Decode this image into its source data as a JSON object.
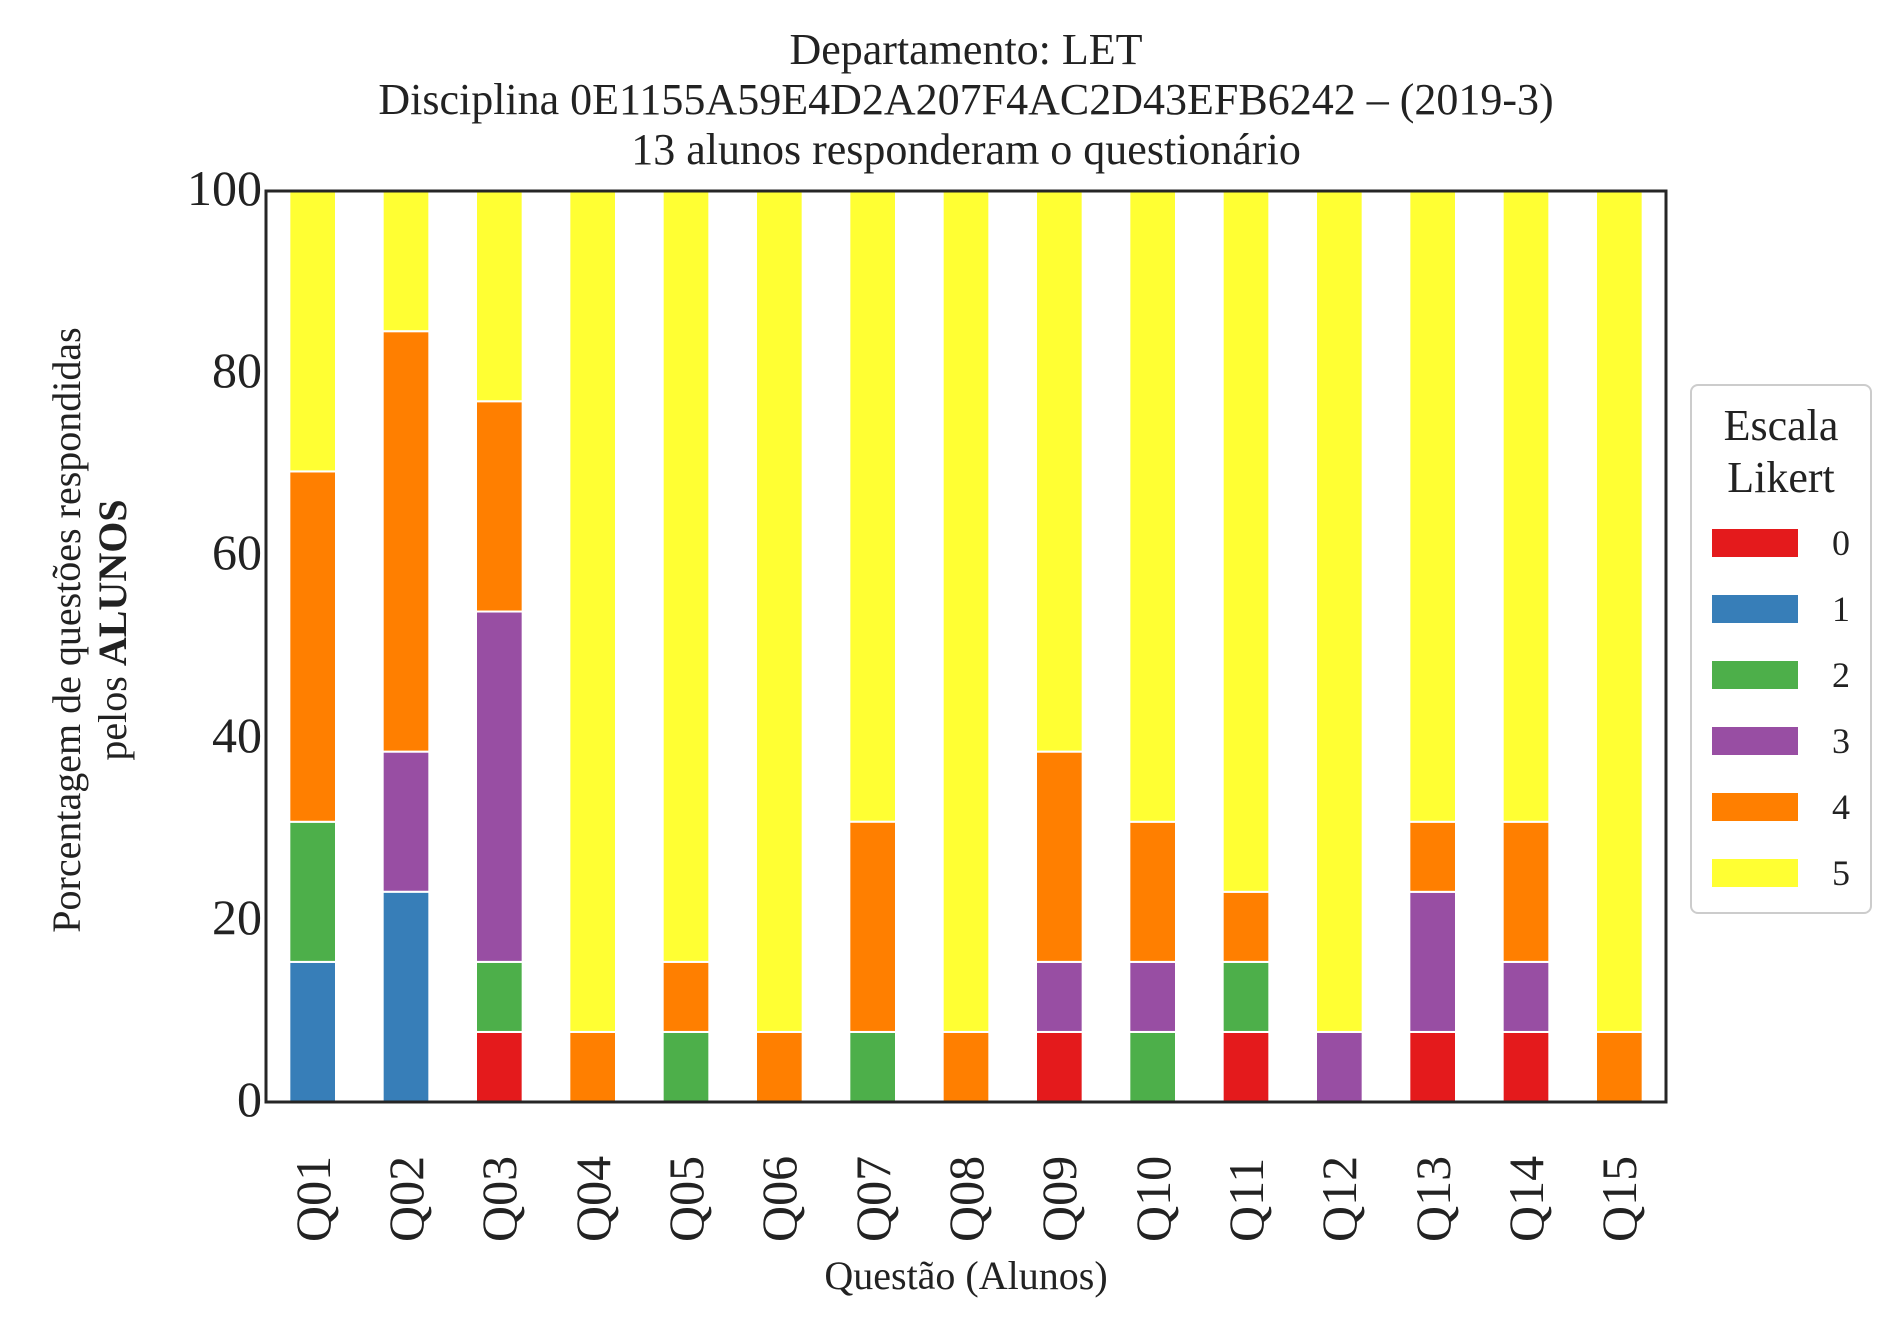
{
  "chart_data": {
    "type": "bar",
    "stacked": true,
    "title": [
      "Departamento: LET",
      "Disciplina 0E1155A59E4D2A207F4AC2D43EFB6242 – (2019-3)",
      "13 alunos responderam o questionário"
    ],
    "xlabel": "Questão (Alunos)",
    "ylabel_prefix": "Porcentagem de questões respondidas",
    "ylabel_line2_normal": "pelos ",
    "ylabel_line2_bold": "ALUNOS",
    "ylim": [
      0,
      100
    ],
    "yticks": [
      "0",
      "20",
      "40",
      "60",
      "80",
      "100"
    ],
    "categories": [
      "Q01",
      "Q02",
      "Q03",
      "Q04",
      "Q05",
      "Q06",
      "Q07",
      "Q08",
      "Q09",
      "Q10",
      "Q11",
      "Q12",
      "Q13",
      "Q14",
      "Q15"
    ],
    "legend_title": [
      "Escala",
      "Likert"
    ],
    "legend_position": "right",
    "grid": false,
    "series": [
      {
        "name": "0",
        "color": "#e41a1c",
        "values": [
          0,
          0,
          7.69,
          0,
          0,
          0,
          0,
          0,
          7.69,
          0,
          7.69,
          0,
          7.69,
          7.69,
          0
        ]
      },
      {
        "name": "1",
        "color": "#377eb8",
        "values": [
          15.38,
          23.08,
          0,
          0,
          0,
          0,
          0,
          0,
          0,
          0,
          0,
          0,
          0,
          0,
          0
        ]
      },
      {
        "name": "2",
        "color": "#4daf4a",
        "values": [
          15.38,
          0,
          7.69,
          0,
          7.69,
          0,
          7.69,
          0,
          0,
          7.69,
          7.69,
          0,
          0,
          0,
          0
        ]
      },
      {
        "name": "3",
        "color": "#984ea3",
        "values": [
          0,
          15.38,
          38.46,
          0,
          0,
          0,
          0,
          0,
          7.69,
          7.69,
          0,
          7.69,
          15.38,
          7.69,
          0
        ]
      },
      {
        "name": "4",
        "color": "#ff7f00",
        "values": [
          38.46,
          46.15,
          23.08,
          7.69,
          7.69,
          7.69,
          23.08,
          7.69,
          23.08,
          15.38,
          7.69,
          0,
          7.69,
          15.38,
          7.69
        ]
      },
      {
        "name": "5",
        "color": "#ffff33",
        "values": [
          30.77,
          15.38,
          23.08,
          92.31,
          84.62,
          92.31,
          69.23,
          92.31,
          61.54,
          69.23,
          76.92,
          92.31,
          69.23,
          69.23,
          92.31
        ]
      }
    ]
  }
}
